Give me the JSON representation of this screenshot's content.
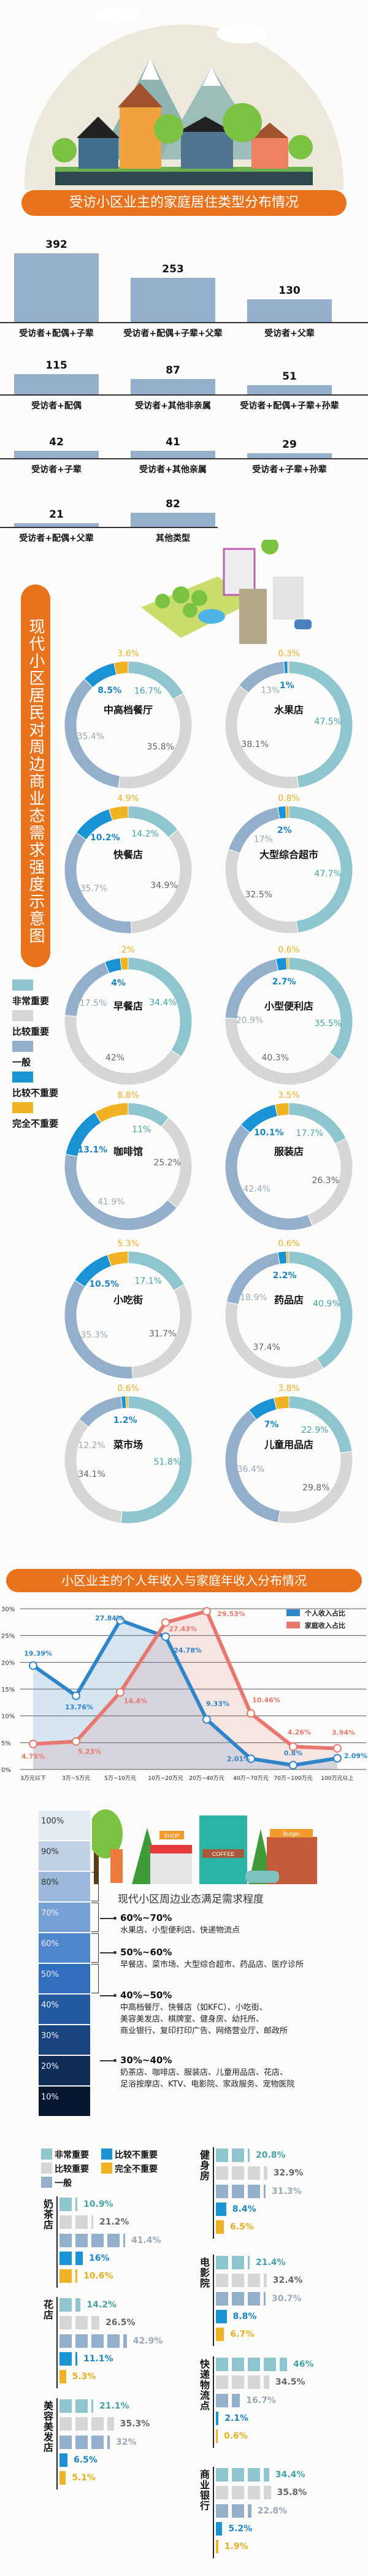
{
  "colors": {
    "accent": "#e8731c",
    "very_important": "#8ec5cf",
    "fairly_important": "#d6d6d6",
    "average": "#93afcb",
    "fairly_unimportant": "#1a93d4",
    "not_important": "#f0b323",
    "bar": "#93afcb",
    "personal": "#2e86c8",
    "family": "#e8776f"
  },
  "section1": {
    "title": "受访小区业主的家庭居住类型分布情况"
  },
  "section2": {
    "title": "现代小区居民对周边商业态需求强度示意图",
    "legend": [
      "非常重要",
      "比较重要",
      "一般",
      "比较不重要",
      "完全不重要"
    ]
  },
  "section3": {
    "title": "小区业主的个人年收入与家庭年收入分布情况"
  },
  "section4": {
    "subtitle": "现代小区周边业态满足需求程度",
    "scale": [
      "100%",
      "90%",
      "80%",
      "70%",
      "60%",
      "50%",
      "40%",
      "30%",
      "20%",
      "10%"
    ],
    "groups": [
      {
        "range": "60%~70%",
        "lines": [
          "水果店、小型便利店、快递物流点"
        ]
      },
      {
        "range": "50%~60%",
        "lines": [
          "早餐店、菜市场、大型综合超市、药品店、医疗诊所"
        ]
      },
      {
        "range": "40%~50%",
        "lines": [
          "中高档餐厅、快餐店（如KFC）、小吃街、",
          "美容美发店、棋牌室、健身房、幼托所、",
          "商业银行、复印打印广告、网络营业厅、邮政所"
        ]
      },
      {
        "range": "30%~40%",
        "lines": [
          "奶茶店、咖啡店、服装店、儿童用品店、花店、",
          "足浴按摩店、KTV、电影院、家政服务、宠物医院"
        ]
      }
    ],
    "shop_signs": [
      "SHOP",
      "COFFEE",
      "Burger"
    ]
  },
  "section5": {
    "legend": [
      "非常重要",
      "比较不重要",
      "比较重要",
      "完全不重要",
      "一般"
    ]
  },
  "chart_data": [
    {
      "type": "bar",
      "title": "受访小区业主的家庭居住类型分布情况",
      "categories": [
        "受访者+配偶+子辈",
        "受访者+配偶+子辈+父辈",
        "受访者+父辈",
        "受访者+配偶",
        "受访者+其他非亲属",
        "受访者+配偶+子辈+孙辈",
        "受访者+子辈",
        "受访者+其他亲属",
        "受访者+子辈+孙辈",
        "受访者+配偶+父辈",
        "其他类型"
      ],
      "values": [
        392,
        253,
        130,
        115,
        87,
        51,
        42,
        41,
        29,
        21,
        82
      ]
    },
    {
      "type": "pie",
      "title": "现代小区居民对周边商业态需求强度示意图",
      "variant": "donut",
      "segments": [
        "非常重要",
        "比较重要",
        "一般",
        "比较不重要",
        "完全不重要"
      ],
      "series": [
        {
          "name": "中高档餐厅",
          "values": [
            16.7,
            35.8,
            35.4,
            8.5,
            3.6
          ]
        },
        {
          "name": "水果店",
          "values": [
            47.5,
            38.1,
            13,
            1,
            0.3
          ]
        },
        {
          "name": "快餐店",
          "values": [
            14.2,
            34.9,
            35.7,
            10.2,
            4.9
          ]
        },
        {
          "name": "大型综合超市",
          "values": [
            47.7,
            32.5,
            17,
            2,
            0.8
          ]
        },
        {
          "name": "早餐店",
          "values": [
            34.4,
            42,
            17.5,
            4,
            2
          ]
        },
        {
          "name": "小型便利店",
          "values": [
            35.5,
            40.3,
            20.9,
            2.7,
            0.6
          ]
        },
        {
          "name": "咖啡馆",
          "values": [
            11,
            25.2,
            41.9,
            13.1,
            8.8
          ]
        },
        {
          "name": "服装店",
          "values": [
            17.7,
            26.3,
            42.4,
            10.1,
            3.5
          ]
        },
        {
          "name": "小吃街",
          "values": [
            17.1,
            31.7,
            35.3,
            10.5,
            5.3
          ]
        },
        {
          "name": "药品店",
          "values": [
            40.9,
            37.4,
            18.9,
            2.2,
            0.6
          ]
        },
        {
          "name": "菜市场",
          "values": [
            51.8,
            34.1,
            12.2,
            1.2,
            0.6
          ]
        },
        {
          "name": "儿童用品店",
          "values": [
            22.9,
            29.8,
            36.4,
            7,
            3.8
          ]
        }
      ]
    },
    {
      "type": "line",
      "title": "小区业主的个人年收入与家庭年收入分布情况",
      "categories": [
        "3万元以下",
        "3万~5万元",
        "5万~10万元",
        "10万~20万元",
        "20万~40万元",
        "40万~70万元",
        "70万~100万元",
        "100万元以上"
      ],
      "ylim": [
        0,
        30
      ],
      "yticks": [
        "0%",
        "5%",
        "10%",
        "15%",
        "20%",
        "25%",
        "30%"
      ],
      "grid": true,
      "legend": "top-right",
      "series": [
        {
          "name": "个人收入占比",
          "values": [
            19.39,
            13.76,
            27.84,
            24.78,
            9.33,
            2.01,
            0.8,
            2.09
          ],
          "labels": [
            "19.39%",
            "13.76%",
            "27.84%",
            "24.78%",
            "9.33%",
            "2.01%",
            "0.8%",
            "2.09%"
          ]
        },
        {
          "name": "家庭收入占比",
          "values": [
            4.75,
            5.23,
            14.4,
            27.43,
            29.53,
            10.46,
            4.26,
            3.94
          ],
          "labels": [
            "4.75%",
            "5.23%",
            "14.4%",
            "27.43%",
            "29.53%",
            "10.46%",
            "4.26%",
            "3.94%"
          ]
        }
      ]
    },
    {
      "type": "bar",
      "orientation": "horizontal",
      "segments": [
        "非常重要",
        "比较重要",
        "一般",
        "比较不重要",
        "完全不重要"
      ],
      "groups": [
        {
          "name": "奶茶店",
          "values": [
            10.9,
            21.2,
            41.4,
            16,
            10.6
          ]
        },
        {
          "name": "花店",
          "values": [
            14.2,
            26.5,
            42.9,
            11.1,
            5.3
          ]
        },
        {
          "name": "美容美发店",
          "values": [
            21.1,
            35.3,
            32,
            6.5,
            5.1
          ]
        },
        {
          "name": "健身房",
          "values": [
            20.8,
            32.9,
            31.3,
            8.4,
            6.5
          ]
        },
        {
          "name": "电影院",
          "values": [
            21.4,
            32.4,
            30.7,
            8.8,
            6.7
          ]
        },
        {
          "name": "快递物流点",
          "values": [
            46,
            34.5,
            16.7,
            2.1,
            0.6
          ]
        },
        {
          "name": "商业银行",
          "values": [
            34.4,
            35.8,
            22.8,
            5.2,
            1.9
          ]
        }
      ]
    }
  ]
}
